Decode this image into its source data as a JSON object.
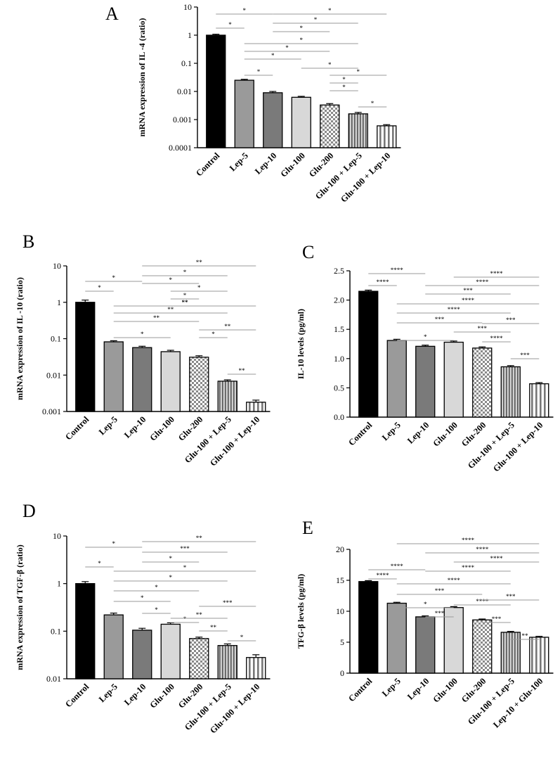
{
  "figure": {
    "panels": [
      "A",
      "B",
      "C",
      "D",
      "E"
    ]
  },
  "chart_data": [
    {
      "panel": "A",
      "type": "bar",
      "scale": "log",
      "ylabel": "mRNA expression  of  IL -4 (ratio)",
      "ylim": [
        0.0001,
        10
      ],
      "yticks": [
        "10",
        "1",
        "0.1",
        "0.01",
        "0.001",
        "0.0001"
      ],
      "categories": [
        "Control",
        "Lep-5",
        "Lep-10",
        "Glu-100",
        "Glu-200",
        "Glu-100 + Lep-5",
        "Glu-100 + Lep-10"
      ],
      "values": [
        1.0,
        0.025,
        0.009,
        0.0062,
        0.0033,
        0.0016,
        0.0006
      ],
      "errors": [
        0.08,
        0.002,
        0.001,
        0.0005,
        0.0004,
        0.0002,
        6e-05
      ],
      "fills": [
        "black",
        "mid",
        "dark",
        "light",
        "checker",
        "vstripe-thin",
        "vstripe-wide"
      ],
      "significance": [
        {
          "from": 0,
          "to": 1,
          "label": "*"
        },
        {
          "from": 0,
          "to": 2,
          "label": "*"
        },
        {
          "from": 2,
          "to": 6,
          "label": "*"
        },
        {
          "from": 2,
          "to": 5,
          "label": "*"
        },
        {
          "from": 2,
          "to": 4,
          "label": "*"
        },
        {
          "from": 1,
          "to": 5,
          "label": "*"
        },
        {
          "from": 1,
          "to": 4,
          "label": "*"
        },
        {
          "from": 1,
          "to": 3,
          "label": "*"
        },
        {
          "from": 1,
          "to": 2,
          "label": "*"
        },
        {
          "from": 3,
          "to": 5,
          "label": "*"
        },
        {
          "from": 4,
          "to": 6,
          "label": "*"
        },
        {
          "from": 4,
          "to": 5,
          "label": "*"
        },
        {
          "from": 4,
          "to": 5,
          "label": "*"
        },
        {
          "from": 5,
          "to": 6,
          "label": "*"
        }
      ]
    },
    {
      "panel": "B",
      "type": "bar",
      "scale": "log",
      "ylabel": "mRNA expression  of  IL -10 (ratio)",
      "ylim": [
        0.001,
        10
      ],
      "yticks": [
        "10",
        "1",
        "0.1",
        "0.01",
        "0.001"
      ],
      "categories": [
        "Control",
        "Lep-5",
        "Lep-10",
        "Glu-100",
        "Glu-200",
        "Glu-100 + Lep-5",
        "Glu-100 + Lep-10"
      ],
      "values": [
        1.0,
        0.082,
        0.057,
        0.044,
        0.031,
        0.0068,
        0.0018
      ],
      "errors": [
        0.15,
        0.006,
        0.005,
        0.004,
        0.003,
        0.0006,
        0.00025
      ],
      "fills": [
        "black",
        "mid",
        "dark",
        "light",
        "checker",
        "vstripe-thin",
        "vstripe-wide"
      ],
      "significance": [
        {
          "from": 0,
          "to": 1,
          "label": "*"
        },
        {
          "from": 0,
          "to": 2,
          "label": "*"
        },
        {
          "from": 2,
          "to": 6,
          "label": "**"
        },
        {
          "from": 2,
          "to": 5,
          "label": "*"
        },
        {
          "from": 2,
          "to": 4,
          "label": "*"
        },
        {
          "from": 3,
          "to": 5,
          "label": "*"
        },
        {
          "from": 3,
          "to": 4,
          "label": "*"
        },
        {
          "from": 2,
          "to": 5,
          "label": "**"
        },
        {
          "from": 1,
          "to": 6,
          "label": "**"
        },
        {
          "from": 1,
          "to": 5,
          "label": "**"
        },
        {
          "from": 1,
          "to": 4,
          "label": "**"
        },
        {
          "from": 1,
          "to": 3,
          "label": "*"
        },
        {
          "from": 4,
          "to": 6,
          "label": "**"
        },
        {
          "from": 4,
          "to": 5,
          "label": "*"
        },
        {
          "from": 5,
          "to": 6,
          "label": "**"
        }
      ]
    },
    {
      "panel": "C",
      "type": "bar",
      "scale": "linear",
      "ylabel": "IL-10 levels (pg/ml)",
      "ylim": [
        0,
        2.5
      ],
      "yticks": [
        "0.0",
        "0.5",
        "1.0",
        "1.5",
        "2.0",
        "2.5"
      ],
      "categories": [
        "Control",
        "Lep-5",
        "Lep-10",
        "Glu-100",
        "Glu-200",
        "Glu-100 + Lep-5",
        "Glu-100 + Lep-10"
      ],
      "values": [
        2.15,
        1.31,
        1.21,
        1.28,
        1.18,
        0.86,
        0.57
      ],
      "errors": [
        0.02,
        0.02,
        0.02,
        0.02,
        0.02,
        0.02,
        0.02
      ],
      "fills": [
        "black",
        "mid",
        "dark",
        "light",
        "checker",
        "vstripe-thin",
        "vstripe-wide"
      ],
      "significance": [
        {
          "from": 0,
          "to": 1,
          "label": "****"
        },
        {
          "from": 0,
          "to": 2,
          "label": "****"
        },
        {
          "from": 3,
          "to": 6,
          "label": "****"
        },
        {
          "from": 2,
          "to": 6,
          "label": "****"
        },
        {
          "from": 2,
          "to": 5,
          "label": "***"
        },
        {
          "from": 1,
          "to": 6,
          "label": "****"
        },
        {
          "from": 1,
          "to": 5,
          "label": "****"
        },
        {
          "from": 1,
          "to": 4,
          "label": "***"
        },
        {
          "from": 1,
          "to": 3,
          "label": "*"
        },
        {
          "from": 3,
          "to": 5,
          "label": "***"
        },
        {
          "from": 4,
          "to": 6,
          "label": "***"
        },
        {
          "from": 4,
          "to": 5,
          "label": "****"
        },
        {
          "from": 5,
          "to": 6,
          "label": "***"
        }
      ]
    },
    {
      "panel": "D",
      "type": "bar",
      "scale": "log",
      "ylabel": "mRNA expression  of  TGF-β (ratio)",
      "ylim": [
        0.01,
        10
      ],
      "yticks": [
        "10",
        "1",
        "0.1",
        "0.01"
      ],
      "categories": [
        "Control",
        "Lep-5",
        "Lep-10",
        "Glu-100",
        "Glu-200",
        "Glu-100 + Lep-5",
        "Glu-100 + Lep-10"
      ],
      "values": [
        1.0,
        0.22,
        0.105,
        0.14,
        0.07,
        0.05,
        0.028
      ],
      "errors": [
        0.1,
        0.02,
        0.01,
        0.01,
        0.005,
        0.004,
        0.004
      ],
      "fills": [
        "black",
        "mid",
        "dark",
        "light",
        "checker",
        "vstripe-thin",
        "vstripe-wide"
      ],
      "significance": [
        {
          "from": 0,
          "to": 1,
          "label": "*"
        },
        {
          "from": 0,
          "to": 2,
          "label": "*"
        },
        {
          "from": 2,
          "to": 6,
          "label": "**"
        },
        {
          "from": 2,
          "to": 5,
          "label": "***"
        },
        {
          "from": 2,
          "to": 4,
          "label": "*"
        },
        {
          "from": 1,
          "to": 6,
          "label": "*"
        },
        {
          "from": 1,
          "to": 5,
          "label": "*"
        },
        {
          "from": 1,
          "to": 4,
          "label": "*"
        },
        {
          "from": 1,
          "to": 3,
          "label": "*"
        },
        {
          "from": 2,
          "to": 3,
          "label": "*"
        },
        {
          "from": 3,
          "to": 4,
          "label": "*"
        },
        {
          "from": 3,
          "to": 5,
          "label": "**"
        },
        {
          "from": 4,
          "to": 6,
          "label": "***"
        },
        {
          "from": 4,
          "to": 5,
          "label": "**"
        },
        {
          "from": 5,
          "to": 6,
          "label": "*"
        }
      ]
    },
    {
      "panel": "E",
      "type": "bar",
      "scale": "linear",
      "ylabel": "TFG-β levels (pg/ml)",
      "ylim": [
        0,
        20
      ],
      "yticks": [
        "0",
        "5",
        "10",
        "15",
        "20"
      ],
      "categories": [
        "Control",
        "Lep-5",
        "Lep-10",
        "Glu-100",
        "Glu-200",
        "Glu-100 + Lep-5",
        "Lep-10 + Glu-100"
      ],
      "values": [
        14.8,
        11.3,
        9.1,
        10.6,
        8.6,
        6.6,
        5.8
      ],
      "errors": [
        0.15,
        0.15,
        0.15,
        0.15,
        0.15,
        0.15,
        0.15
      ],
      "fills": [
        "black",
        "mid",
        "dark",
        "light",
        "checker",
        "vstripe-thin",
        "vstripe-wide"
      ],
      "significance": [
        {
          "from": 0,
          "to": 1,
          "label": "****"
        },
        {
          "from": 0,
          "to": 2,
          "label": "****"
        },
        {
          "from": 1,
          "to": 6,
          "label": "****"
        },
        {
          "from": 2,
          "to": 6,
          "label": "****"
        },
        {
          "from": 3,
          "to": 6,
          "label": "****"
        },
        {
          "from": 2,
          "to": 5,
          "label": "****"
        },
        {
          "from": 1,
          "to": 5,
          "label": "****"
        },
        {
          "from": 1,
          "to": 4,
          "label": "***"
        },
        {
          "from": 1,
          "to": 3,
          "label": "*"
        },
        {
          "from": 2,
          "to": 3,
          "label": "***"
        },
        {
          "from": 3,
          "to": 5,
          "label": "****"
        },
        {
          "from": 4,
          "to": 6,
          "label": "***"
        },
        {
          "from": 4,
          "to": 5,
          "label": "***"
        },
        {
          "from": 5,
          "to": 6,
          "label": "**"
        }
      ]
    }
  ]
}
